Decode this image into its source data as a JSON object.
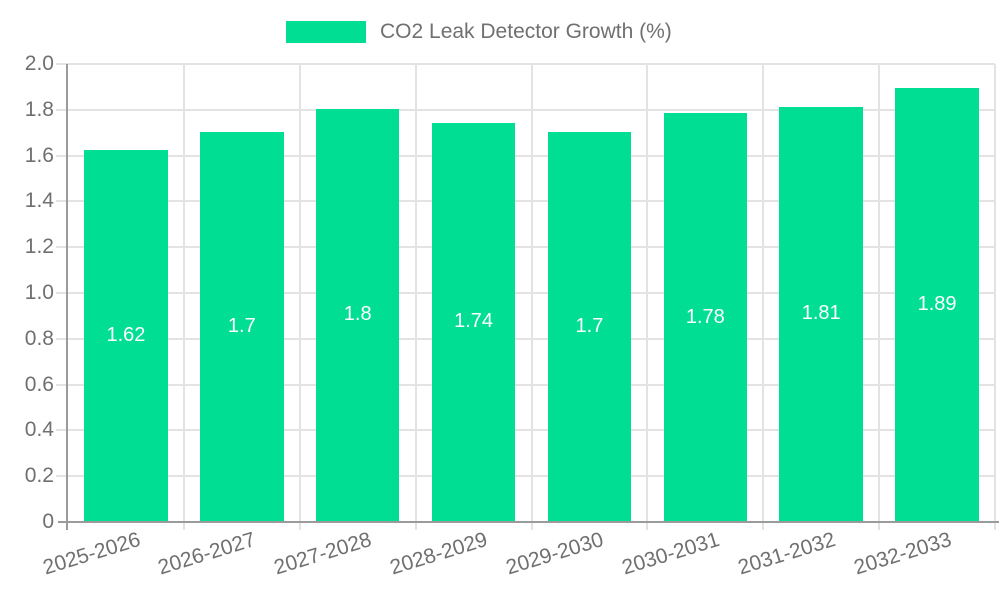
{
  "legend": {
    "label": "CO2 Leak Detector Growth (%)"
  },
  "colors": {
    "bar": "#00de94",
    "value_label": "#ffffff",
    "axis": "#9b9b9b",
    "grid": "#e3e3e3",
    "text": "#707070",
    "background": "#ffffff"
  },
  "chart_data": {
    "type": "bar",
    "title": "CO2 Leak Detector Growth (%)",
    "categories": [
      "2025-2026",
      "2026-2027",
      "2027-2028",
      "2028-2029",
      "2029-2030",
      "2030-2031",
      "2031-2032",
      "2032-2033"
    ],
    "values": [
      1.62,
      1.7,
      1.8,
      1.74,
      1.7,
      1.78,
      1.81,
      1.89
    ],
    "value_labels": [
      "1.62",
      "1.7",
      "1.8",
      "1.74",
      "1.7",
      "1.78",
      "1.81",
      "1.89"
    ],
    "xlabel": "",
    "ylabel": "",
    "ylim": [
      0,
      2
    ],
    "y_ticks": [
      0,
      0.2,
      0.4,
      0.6,
      0.8,
      1,
      1.2,
      1.4,
      1.6,
      1.8,
      2
    ],
    "y_tick_labels": [
      "0",
      "0.2",
      "0.4",
      "0.6",
      "0.8",
      "1.0",
      "1.2",
      "1.4",
      "1.6",
      "1.8",
      "2.0"
    ],
    "grid": true,
    "legend_position": "top-center",
    "x_label_rotation_deg": -17,
    "bar_label_position": "center",
    "bar_width_fraction": 0.72
  }
}
